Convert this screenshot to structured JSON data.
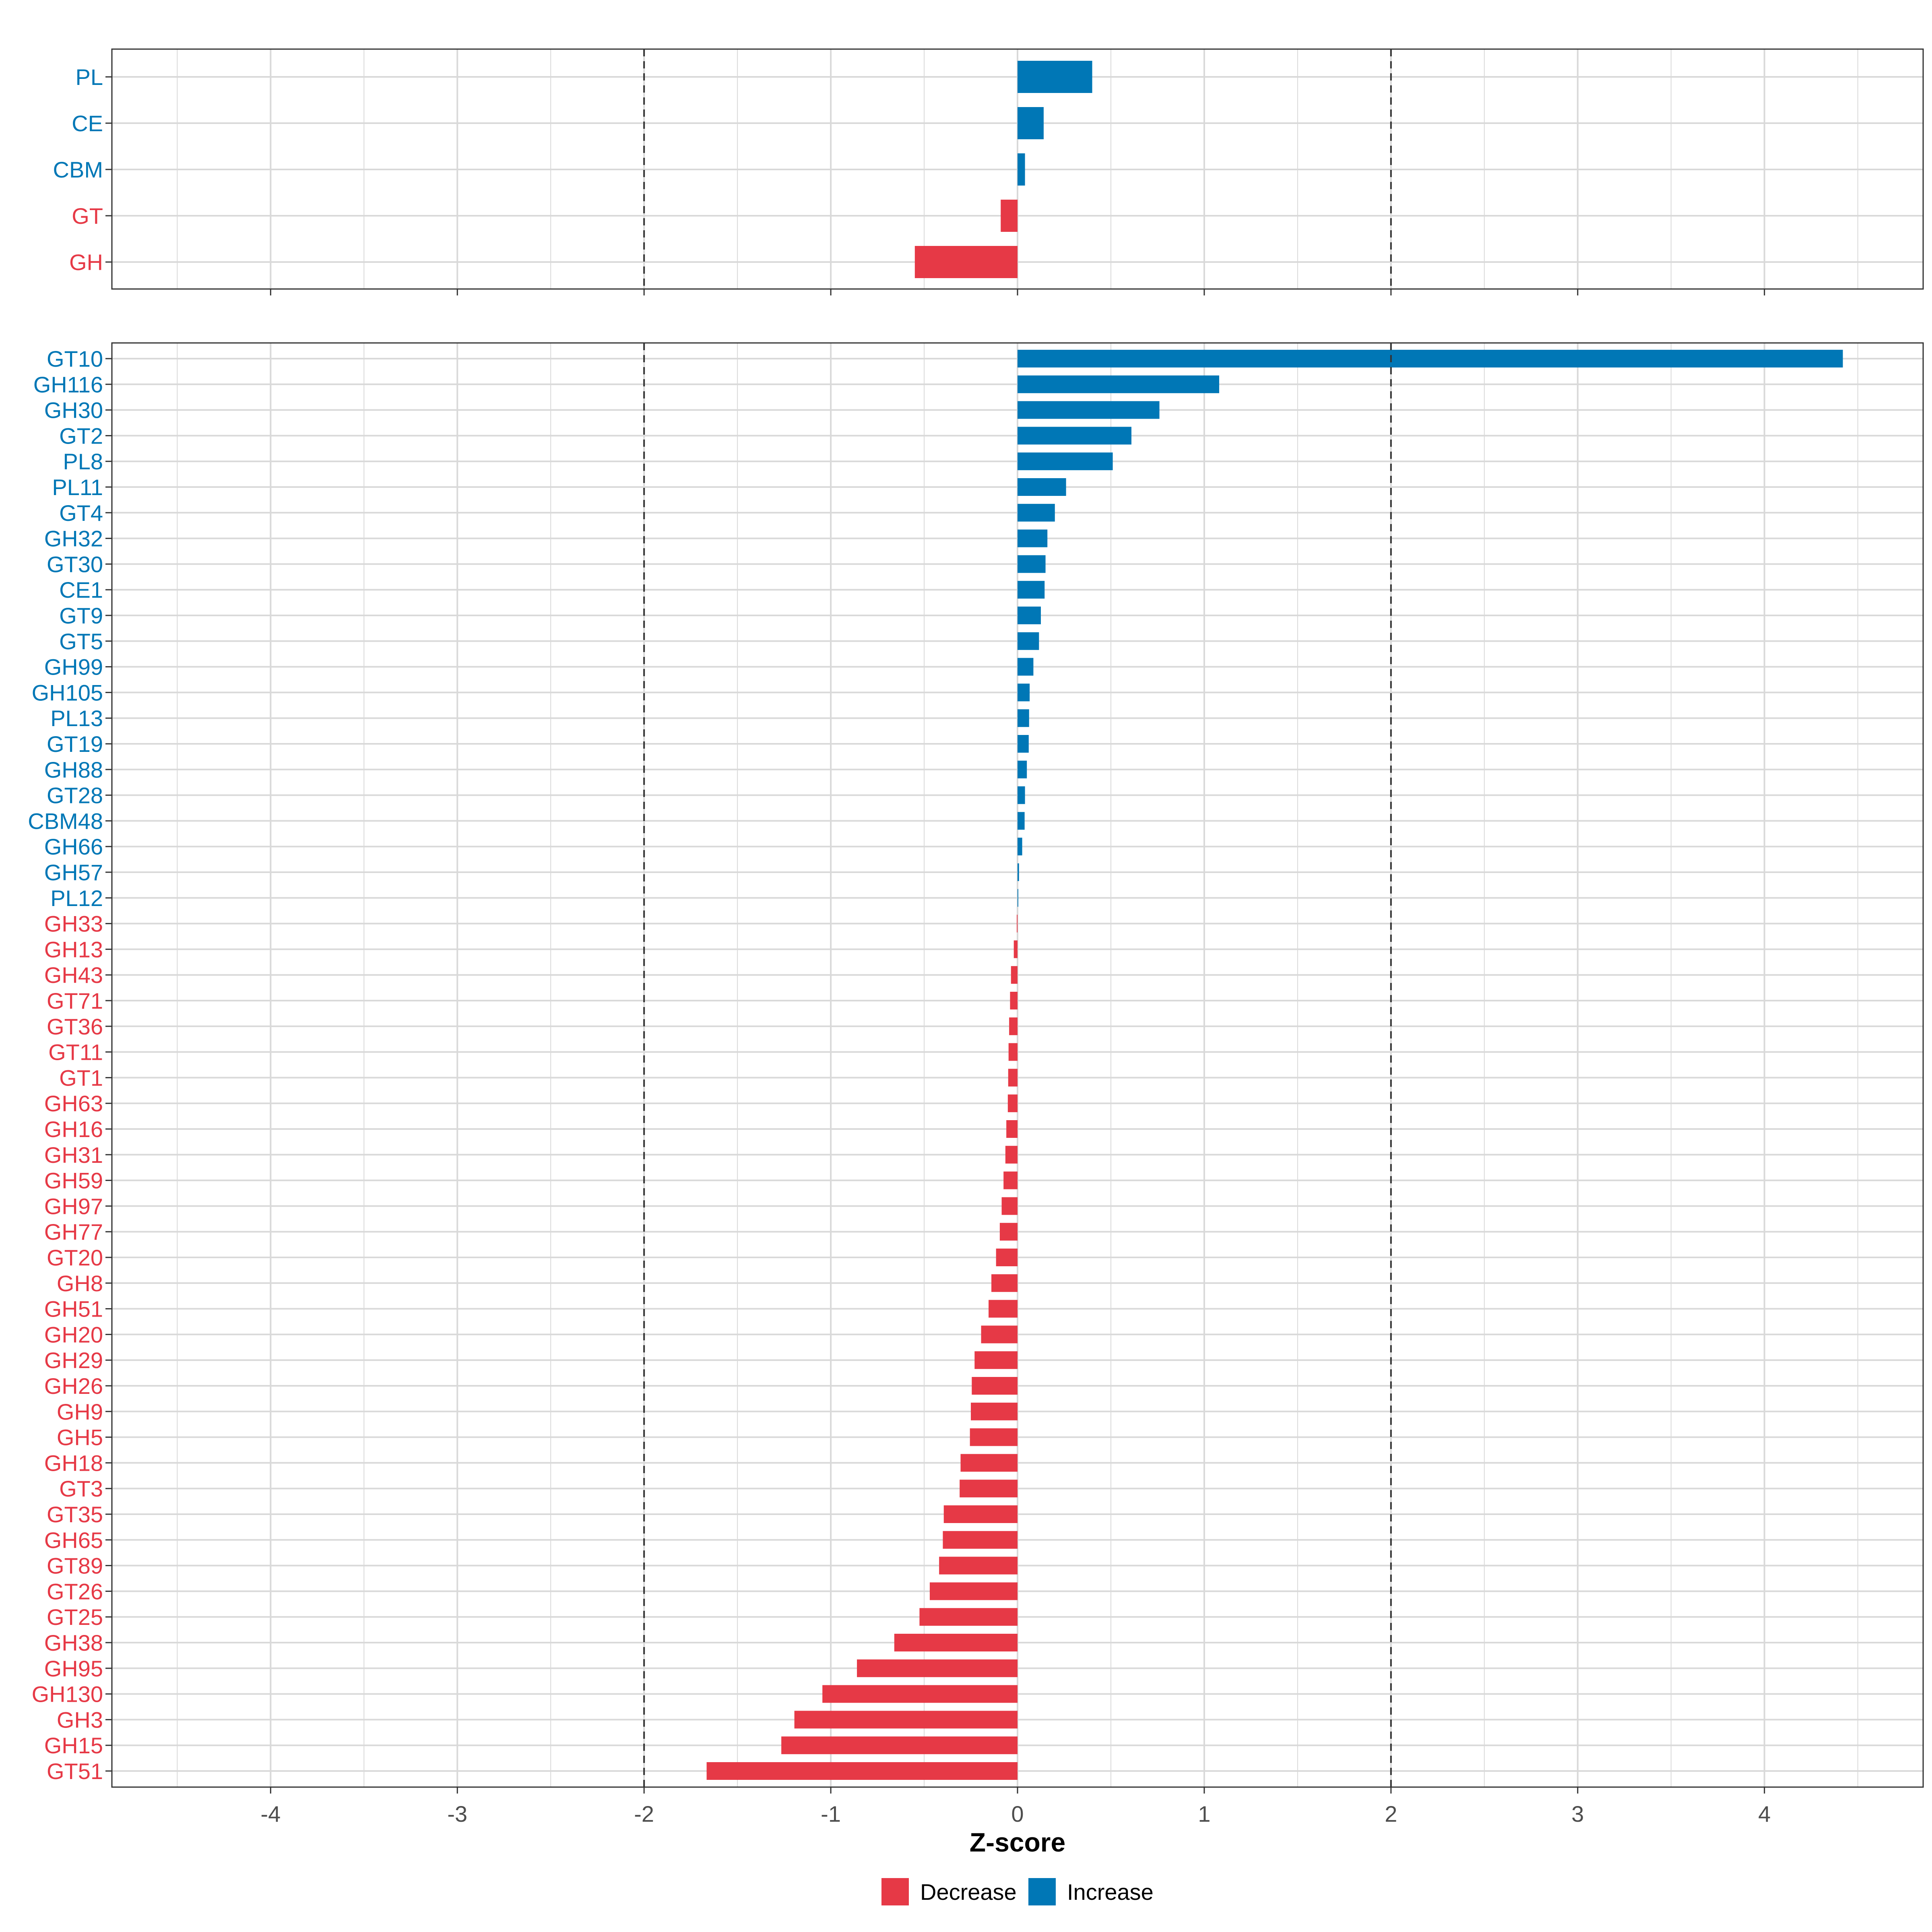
{
  "chart_data": [
    {
      "type": "bar",
      "orientation": "horizontal",
      "panel": "top",
      "categories": [
        "PL",
        "CE",
        "CBM",
        "GT",
        "GH"
      ],
      "values": [
        0.4,
        0.14,
        0.04,
        -0.09,
        -0.55
      ],
      "xlim": [
        -4.85,
        4.85
      ],
      "reference_lines": [
        -2,
        2
      ],
      "grid": true
    },
    {
      "type": "bar",
      "orientation": "horizontal",
      "panel": "bottom",
      "categories": [
        "GT10",
        "GH116",
        "GH30",
        "GT2",
        "PL8",
        "PL11",
        "GT4",
        "GH32",
        "GT30",
        "CE1",
        "GT9",
        "GT5",
        "GH99",
        "GH105",
        "PL13",
        "GT19",
        "GH88",
        "GT28",
        "CBM48",
        "GH66",
        "GH57",
        "PL12",
        "GH33",
        "GH13",
        "GH43",
        "GT71",
        "GT36",
        "GT11",
        "GT1",
        "GH63",
        "GH16",
        "GH31",
        "GH59",
        "GH97",
        "GH77",
        "GT20",
        "GH8",
        "GH51",
        "GH20",
        "GH29",
        "GH26",
        "GH9",
        "GH5",
        "GH18",
        "GT3",
        "GT35",
        "GH65",
        "GT89",
        "GT26",
        "GT25",
        "GH38",
        "GH95",
        "GH130",
        "GH3",
        "GH15",
        "GT51"
      ],
      "values": [
        4.42,
        1.08,
        0.76,
        0.61,
        0.51,
        0.26,
        0.2,
        0.16,
        0.15,
        0.145,
        0.125,
        0.115,
        0.085,
        0.065,
        0.062,
        0.06,
        0.05,
        0.04,
        0.038,
        0.025,
        0.008,
        0.004,
        -0.004,
        -0.02,
        -0.035,
        -0.04,
        -0.045,
        -0.048,
        -0.05,
        -0.052,
        -0.06,
        -0.065,
        -0.075,
        -0.085,
        -0.095,
        -0.115,
        -0.14,
        -0.155,
        -0.195,
        -0.23,
        -0.245,
        -0.25,
        -0.255,
        -0.305,
        -0.31,
        -0.395,
        -0.4,
        -0.42,
        -0.47,
        -0.525,
        -0.66,
        -0.86,
        -1.045,
        -1.195,
        -1.265,
        -1.665
      ],
      "xlim": [
        -4.85,
        4.85
      ],
      "xticks": [
        -4,
        -3,
        -2,
        -1,
        0,
        1,
        2,
        3,
        4
      ],
      "xtick_labels": [
        "-4",
        "-3",
        "-2",
        "-1",
        "0",
        "1",
        "2",
        "3",
        "4"
      ],
      "reference_lines": [
        -2,
        2
      ],
      "grid": true
    }
  ],
  "xlabel": "Z-score",
  "legend": [
    {
      "label": "Decrease",
      "color": "#E63946"
    },
    {
      "label": "Increase",
      "color": "#0077B6"
    }
  ],
  "colors": {
    "decrease": "#E63946",
    "increase": "#0077B6",
    "grid": "#d9d9d9",
    "panel_border": "#333333",
    "reference_line": "#333333"
  }
}
